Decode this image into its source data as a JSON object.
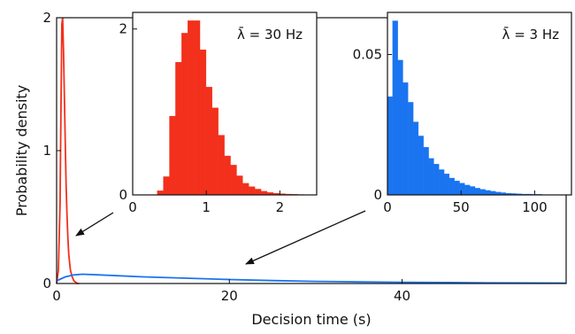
{
  "colors": {
    "red": "#f2301c",
    "blue": "#1a74f0",
    "axis": "#111111"
  },
  "chart_data": [
    {
      "id": "main",
      "type": "line",
      "title": "",
      "xlabel": "Decision time (s)",
      "ylabel": "Probability density",
      "xlim": [
        0,
        59
      ],
      "ylim": [
        0,
        2
      ],
      "xticks": [
        0,
        20,
        40
      ],
      "yticks": [
        0,
        1,
        2
      ],
      "series": [
        {
          "color_key": "red",
          "x": [
            0.0,
            0.2,
            0.4,
            0.5,
            0.6,
            0.7,
            0.8,
            0.9,
            1.0,
            1.1,
            1.2,
            1.3,
            1.4,
            1.6,
            1.8,
            2.0,
            2.2,
            2.4,
            2.6
          ],
          "y": [
            0.0,
            0.1,
            0.6,
            1.3,
            1.95,
            2.0,
            1.75,
            1.4,
            1.05,
            0.75,
            0.52,
            0.35,
            0.22,
            0.1,
            0.05,
            0.02,
            0.01,
            0.0,
            0.0
          ]
        },
        {
          "color_key": "blue",
          "x": [
            0.0,
            1.0,
            2.0,
            3.0,
            5.0,
            10.0,
            15.0,
            20.0,
            25.0,
            30.0,
            35.0,
            40.0,
            45.0,
            50.0,
            55.0,
            59.0
          ],
          "y": [
            0.02,
            0.05,
            0.065,
            0.07,
            0.065,
            0.05,
            0.04,
            0.03,
            0.022,
            0.016,
            0.012,
            0.009,
            0.007,
            0.005,
            0.004,
            0.003
          ]
        }
      ]
    },
    {
      "id": "inset-fast",
      "type": "bar",
      "annotation": "λ̄ = 30 Hz",
      "xlim": [
        0,
        2.5
      ],
      "ylim": [
        0,
        2.2
      ],
      "xticks": [
        0,
        1,
        2
      ],
      "yticks": [
        0,
        2
      ],
      "color_key": "red",
      "bin_width": 0.083,
      "bin_start": 0.333,
      "values": [
        0.05,
        0.22,
        0.95,
        1.6,
        1.95,
        2.1,
        2.1,
        1.75,
        1.3,
        1.05,
        0.72,
        0.47,
        0.36,
        0.23,
        0.14,
        0.1,
        0.07,
        0.045,
        0.03,
        0.02,
        0.015,
        0.01,
        0.008,
        0.005,
        0.003,
        0.002
      ]
    },
    {
      "id": "inset-slow",
      "type": "bar",
      "annotation": "λ̄ = 3 Hz",
      "xlim": [
        0,
        125
      ],
      "ylim": [
        0,
        0.065
      ],
      "xticks": [
        0,
        50,
        100
      ],
      "yticks": [
        0,
        0.05
      ],
      "color_key": "blue",
      "bin_width": 3.5,
      "bin_start": 0,
      "values": [
        0.035,
        0.062,
        0.048,
        0.04,
        0.033,
        0.026,
        0.021,
        0.017,
        0.013,
        0.011,
        0.009,
        0.0075,
        0.006,
        0.005,
        0.0042,
        0.0035,
        0.003,
        0.0024,
        0.002,
        0.0016,
        0.0013,
        0.001,
        0.0008,
        0.0006,
        0.0005,
        0.0004,
        0.0003,
        0.0003,
        0.0002,
        0.0002,
        0.0001,
        0.0001,
        0.0001,
        0.0001,
        0.0001,
        0.0001
      ]
    }
  ]
}
